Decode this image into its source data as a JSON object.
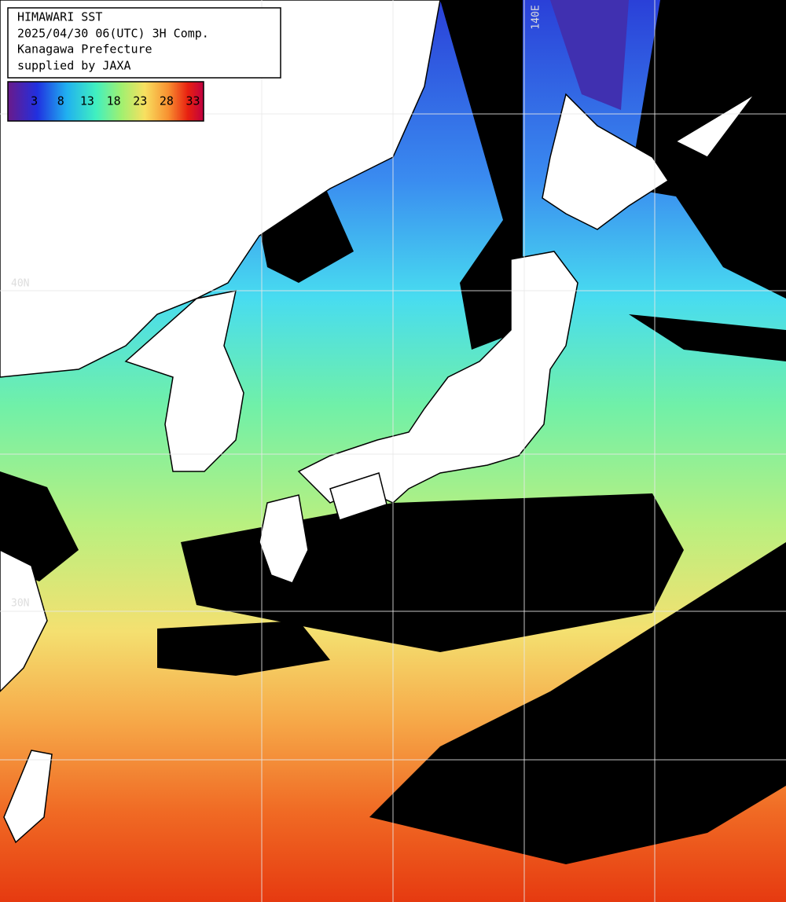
{
  "header": {
    "lines": [
      "HIMAWARI SST",
      "2025/04/30 06(UTC) 3H Comp.",
      "Kanagawa Prefecture",
      "supplied by JAXA"
    ]
  },
  "colorbar": {
    "lim": [
      -2,
      35
    ],
    "ticks": [
      3,
      8,
      13,
      18,
      23,
      28,
      33
    ]
  },
  "grid_labels": {
    "lon": [
      "140E"
    ],
    "lat": [
      "40N",
      "30N"
    ]
  }
}
